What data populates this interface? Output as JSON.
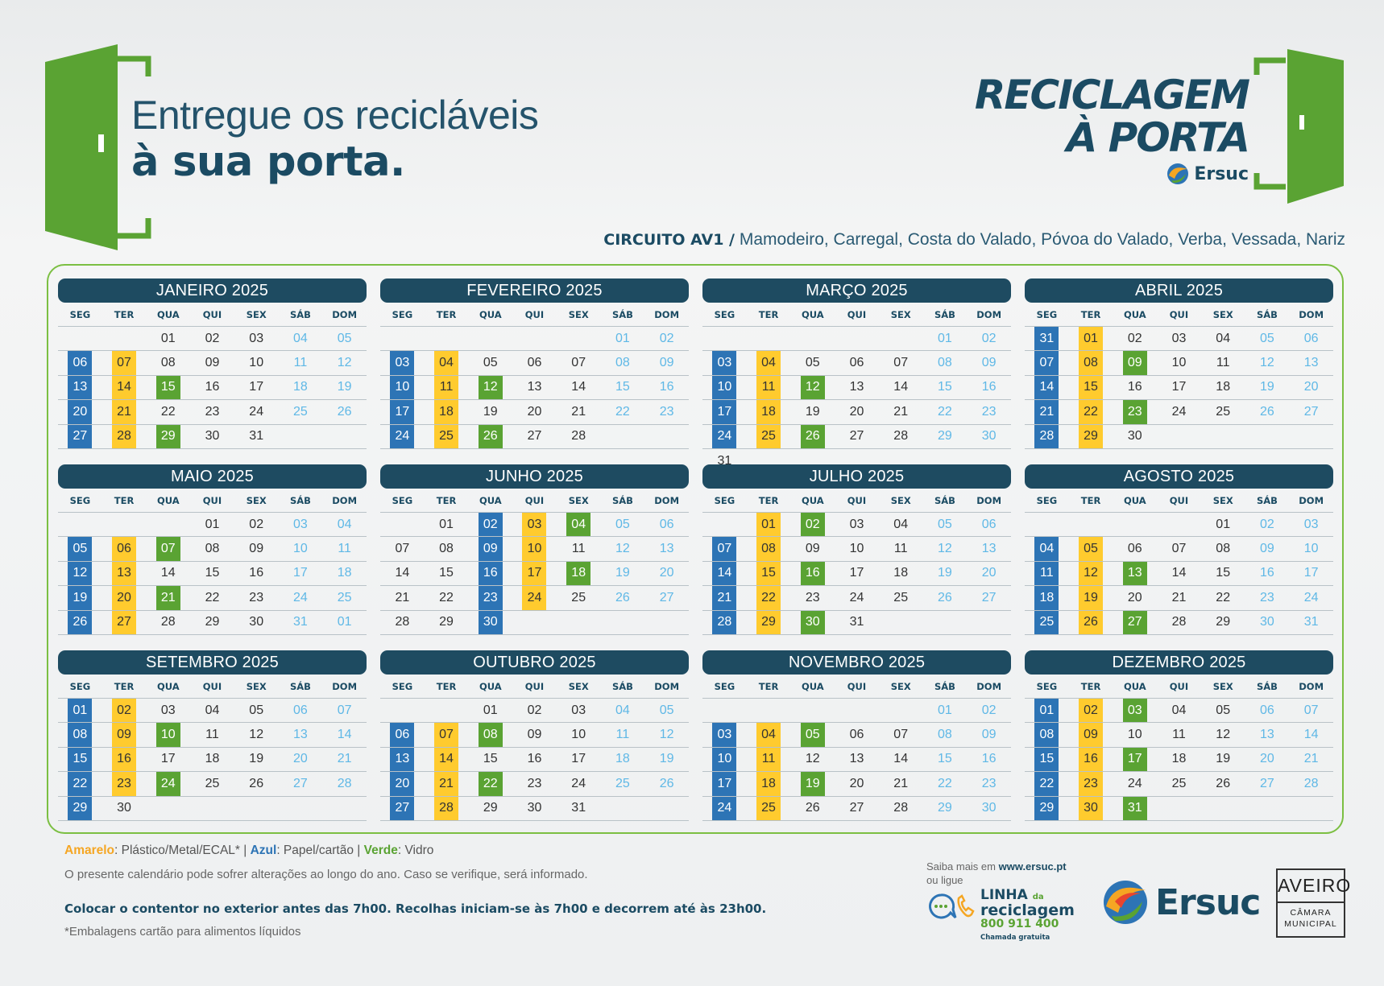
{
  "headline": {
    "line1": "Entregue os recicláveis",
    "line2": "à sua porta."
  },
  "brand": {
    "line1": "RECICLAGEM",
    "line2": "À PORTA",
    "logo_word": "Ersuc"
  },
  "circuit": {
    "code": "CIRCUITO AV1 /",
    "places": "Mamodeiro, Carregal, Costa do Valado, Póvoa do Valado, Verba, Vessada, Nariz"
  },
  "weekdays": [
    "SEG",
    "TER",
    "QUA",
    "QUI",
    "SEX",
    "SÁB",
    "DOM"
  ],
  "colors": {
    "plastic": "#ffcb2e",
    "paper": "#2d74b5",
    "glass": "#5aa333",
    "header": "#1e4b61",
    "weekend": "#5fb8e6"
  },
  "months": [
    {
      "name": "JANEIRO 2025",
      "offset": 2,
      "days": 31,
      "plastic": [
        7,
        14,
        21,
        28
      ],
      "paper": [
        6,
        13,
        20,
        27
      ],
      "glass": [
        15,
        29
      ]
    },
    {
      "name": "FEVEREIRO 2025",
      "offset": 5,
      "days": 28,
      "plastic": [
        4,
        11,
        18,
        25
      ],
      "paper": [
        3,
        10,
        17,
        24
      ],
      "glass": [
        12,
        26
      ]
    },
    {
      "name": "MARÇO 2025",
      "offset": 5,
      "days": 31,
      "plastic": [
        4,
        11,
        18,
        25
      ],
      "paper": [
        3,
        10,
        17,
        24
      ],
      "glass": [
        12,
        26
      ]
    },
    {
      "name": "ABRIL 2025",
      "offset": 0,
      "days": 30,
      "plastic": [
        1,
        8,
        15,
        22,
        29
      ],
      "paper": [
        7,
        14,
        21,
        28
      ],
      "glass": [
        9,
        23
      ],
      "leading": [
        {
          "day": "31",
          "type": "paper"
        }
      ]
    },
    {
      "name": "MAIO 2025",
      "offset": 3,
      "days": 31,
      "plastic": [
        6,
        13,
        20,
        27
      ],
      "paper": [
        5,
        12,
        19,
        26
      ],
      "glass": [
        7,
        21
      ],
      "trailing": [
        "01"
      ]
    },
    {
      "name": "JUNHO 2025",
      "offset": 0,
      "days": 30,
      "plastic": [
        3,
        10,
        17,
        24
      ],
      "paper": [
        2,
        9,
        16,
        23,
        30
      ],
      "glass": [
        4,
        18
      ],
      "leading": [
        {
          "day": "",
          "type": "empty"
        }
      ]
    },
    {
      "name": "JULHO 2025",
      "offset": 1,
      "days": 31,
      "plastic": [
        1,
        8,
        15,
        22,
        29
      ],
      "paper": [
        7,
        14,
        21,
        28
      ],
      "glass": [
        2,
        16,
        30
      ]
    },
    {
      "name": "AGOSTO 2025",
      "offset": 4,
      "days": 31,
      "plastic": [
        5,
        12,
        19,
        26
      ],
      "paper": [
        4,
        11,
        18,
        25
      ],
      "glass": [
        13,
        27
      ]
    },
    {
      "name": "SETEMBRO 2025",
      "offset": 0,
      "days": 30,
      "plastic": [
        2,
        9,
        16,
        23
      ],
      "paper": [
        1,
        8,
        15,
        22,
        29
      ],
      "glass": [
        10,
        24
      ]
    },
    {
      "name": "OUTUBRO 2025",
      "offset": 2,
      "days": 31,
      "plastic": [
        7,
        14,
        21,
        28
      ],
      "paper": [
        6,
        13,
        20,
        27
      ],
      "glass": [
        8,
        22
      ]
    },
    {
      "name": "NOVEMBRO 2025",
      "offset": 5,
      "days": 30,
      "plastic": [
        4,
        11,
        18,
        25
      ],
      "paper": [
        3,
        10,
        17,
        24
      ],
      "glass": [
        5,
        19
      ]
    },
    {
      "name": "DEZEMBRO 2025",
      "offset": 0,
      "days": 31,
      "plastic": [
        2,
        9,
        16,
        23,
        30
      ],
      "paper": [
        1,
        8,
        15,
        22,
        29
      ],
      "glass": [
        3,
        17,
        31
      ]
    }
  ],
  "legend": {
    "yellow_label": "Amarelo",
    "yellow_text": ": Plástico/Metal/ECAL* | ",
    "blue_label": "Azul",
    "blue_text": ": Papel/cartão  | ",
    "green_label": "Verde",
    "green_text": ": Vidro"
  },
  "notes": {
    "change": "O presente calendário pode sofrer alterações ao longo do ano. Caso se verifique, será informado.",
    "instruction": "Colocar o contentor no exterior antes das 7h00. Recolhas iniciam-se às 7h00 e decorrem até às 23h00.",
    "footnote": "*Embalagens cartão para alimentos líquidos"
  },
  "contact": {
    "prefix": "Saiba mais em ",
    "url": "www.ersuc.pt",
    "or_call": "ou ligue",
    "line_l1": "LINHA",
    "line_da": "da",
    "line_l2": "reciclagem",
    "phone": "800 911 400",
    "free": "Chamada gratuita"
  },
  "footer_logo": {
    "word": "Ersuc"
  },
  "aveiro": {
    "line1": "AVEIRO",
    "line2": "CÂMARA",
    "line3": "MUNICIPAL"
  }
}
